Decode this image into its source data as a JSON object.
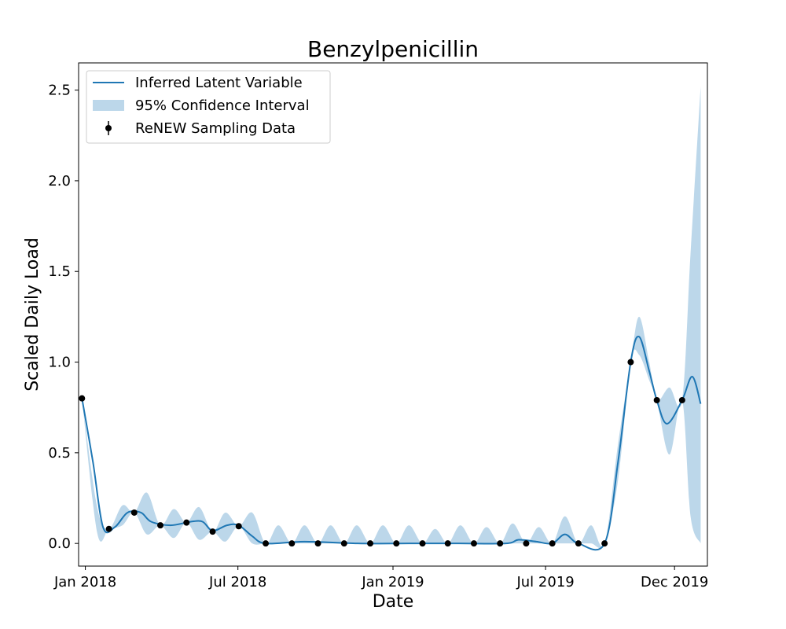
{
  "chart_data": {
    "type": "line",
    "title": "Benzylpenicillin",
    "xlabel": "Date",
    "ylabel": "Scaled Daily Load",
    "xlim": [
      "2017-12-24",
      "2020-01-09"
    ],
    "ylim": [
      -0.125,
      2.65
    ],
    "x_ticks": [
      {
        "date": "2018-01-01",
        "label": "Jan 2018"
      },
      {
        "date": "2018-07-01",
        "label": "Jul 2018"
      },
      {
        "date": "2019-01-01",
        "label": "Jan 2019"
      },
      {
        "date": "2019-07-01",
        "label": "Jul 2019"
      },
      {
        "date": "2019-12-01",
        "label": "Dec 2019"
      }
    ],
    "y_ticks": [
      {
        "value": 0.0,
        "label": "0.0"
      },
      {
        "value": 0.5,
        "label": "0.5"
      },
      {
        "value": 1.0,
        "label": "1.0"
      },
      {
        "value": 1.5,
        "label": "1.5"
      },
      {
        "value": 2.0,
        "label": "2.0"
      },
      {
        "value": 2.5,
        "label": "2.5"
      }
    ],
    "grid": false,
    "legend": {
      "position": "top-left",
      "entries": [
        "Inferred Latent Variable",
        "95% Confidence Interval",
        "ReNEW Sampling Data"
      ]
    },
    "colors": {
      "line": "#1f77b4",
      "band": "#bcd7ea",
      "points": "#000000"
    },
    "series": [
      {
        "name": "ReNEW Sampling Data",
        "kind": "points",
        "x": [
          "2017-12-28",
          "2018-01-29",
          "2018-02-28",
          "2018-03-31",
          "2018-05-01",
          "2018-06-01",
          "2018-07-02",
          "2018-08-03",
          "2018-09-03",
          "2018-10-04",
          "2018-11-04",
          "2018-12-05",
          "2019-01-05",
          "2019-02-05",
          "2019-03-07",
          "2019-04-07",
          "2019-05-08",
          "2019-06-08",
          "2019-07-09",
          "2019-08-09",
          "2019-09-09",
          "2019-10-10",
          "2019-11-10",
          "2019-12-10"
        ],
        "y": [
          0.8,
          0.08,
          0.17,
          0.1,
          0.115,
          0.065,
          0.095,
          0,
          0,
          0,
          0,
          0,
          0,
          0,
          0,
          0,
          0,
          0,
          0,
          0,
          0,
          1.0,
          0.79,
          0.79
        ]
      },
      {
        "name": "Inferred Latent Variable",
        "kind": "line",
        "x": [
          "2017-12-28",
          "2018-01-10",
          "2018-01-22",
          "2018-02-05",
          "2018-02-20",
          "2018-03-08",
          "2018-03-20",
          "2018-04-12",
          "2018-05-06",
          "2018-05-20",
          "2018-06-01",
          "2018-06-18",
          "2018-07-02",
          "2018-07-18",
          "2018-08-03",
          "2018-09-18",
          "2018-11-20",
          "2019-01-20",
          "2019-03-20",
          "2019-05-15",
          "2019-05-30",
          "2019-06-20",
          "2019-07-09",
          "2019-07-24",
          "2019-08-09",
          "2019-09-09",
          "2019-09-25",
          "2019-10-10",
          "2019-10-20",
          "2019-11-01",
          "2019-11-10",
          "2019-11-22",
          "2019-12-10",
          "2019-12-22",
          "2020-01-01"
        ],
        "y": [
          0.8,
          0.45,
          0.09,
          0.09,
          0.17,
          0.17,
          0.12,
          0.1,
          0.12,
          0.12,
          0.07,
          0.1,
          0.1,
          0.04,
          0,
          0.01,
          0,
          0,
          0,
          0,
          0.02,
          0.01,
          0,
          0.05,
          0,
          0,
          0.45,
          1.0,
          1.14,
          0.95,
          0.79,
          0.66,
          0.79,
          0.92,
          0.77
        ]
      },
      {
        "name": "95% Confidence Interval",
        "kind": "band",
        "x": [
          "2017-12-28",
          "2018-01-15",
          "2018-01-29",
          "2018-02-14",
          "2018-02-28",
          "2018-03-15",
          "2018-03-31",
          "2018-04-16",
          "2018-05-01",
          "2018-05-16",
          "2018-06-01",
          "2018-06-16",
          "2018-07-02",
          "2018-07-18",
          "2018-08-03",
          "2018-08-18",
          "2018-09-03",
          "2018-09-18",
          "2018-10-04",
          "2018-10-19",
          "2018-11-04",
          "2018-11-19",
          "2018-12-05",
          "2018-12-20",
          "2019-01-05",
          "2019-01-20",
          "2019-02-05",
          "2019-02-20",
          "2019-03-07",
          "2019-03-22",
          "2019-04-07",
          "2019-04-22",
          "2019-05-08",
          "2019-05-23",
          "2019-06-08",
          "2019-06-23",
          "2019-07-09",
          "2019-07-24",
          "2019-08-09",
          "2019-08-24",
          "2019-09-09",
          "2019-09-25",
          "2019-10-10",
          "2019-10-20",
          "2019-11-01",
          "2019-11-10",
          "2019-11-25",
          "2019-12-10",
          "2019-12-20",
          "2020-01-01"
        ],
        "lower": [
          0.8,
          0.06,
          0.08,
          0.1,
          0.17,
          0.05,
          0.1,
          0.03,
          0.115,
          0.02,
          0.065,
          0.01,
          0.095,
          0,
          0,
          0,
          0,
          0,
          0,
          0,
          0,
          0,
          0,
          0,
          0,
          0,
          0,
          0,
          0,
          0,
          0,
          0,
          0,
          0,
          0,
          0,
          0,
          0,
          0,
          0,
          0,
          0.35,
          1.0,
          1.04,
          0.9,
          0.79,
          0.49,
          0.79,
          0.15,
          0
        ],
        "upper": [
          0.8,
          0.2,
          0.08,
          0.21,
          0.17,
          0.28,
          0.1,
          0.19,
          0.115,
          0.2,
          0.065,
          0.17,
          0.095,
          0.17,
          0,
          0.1,
          0,
          0.1,
          0,
          0.1,
          0,
          0.1,
          0,
          0.1,
          0,
          0.1,
          0,
          0.08,
          0,
          0.1,
          0,
          0.09,
          0,
          0.11,
          0,
          0.09,
          0,
          0.15,
          0,
          0.1,
          0,
          0.55,
          1.0,
          1.25,
          1.0,
          0.79,
          0.86,
          0.79,
          1.6,
          2.52
        ]
      }
    ]
  }
}
